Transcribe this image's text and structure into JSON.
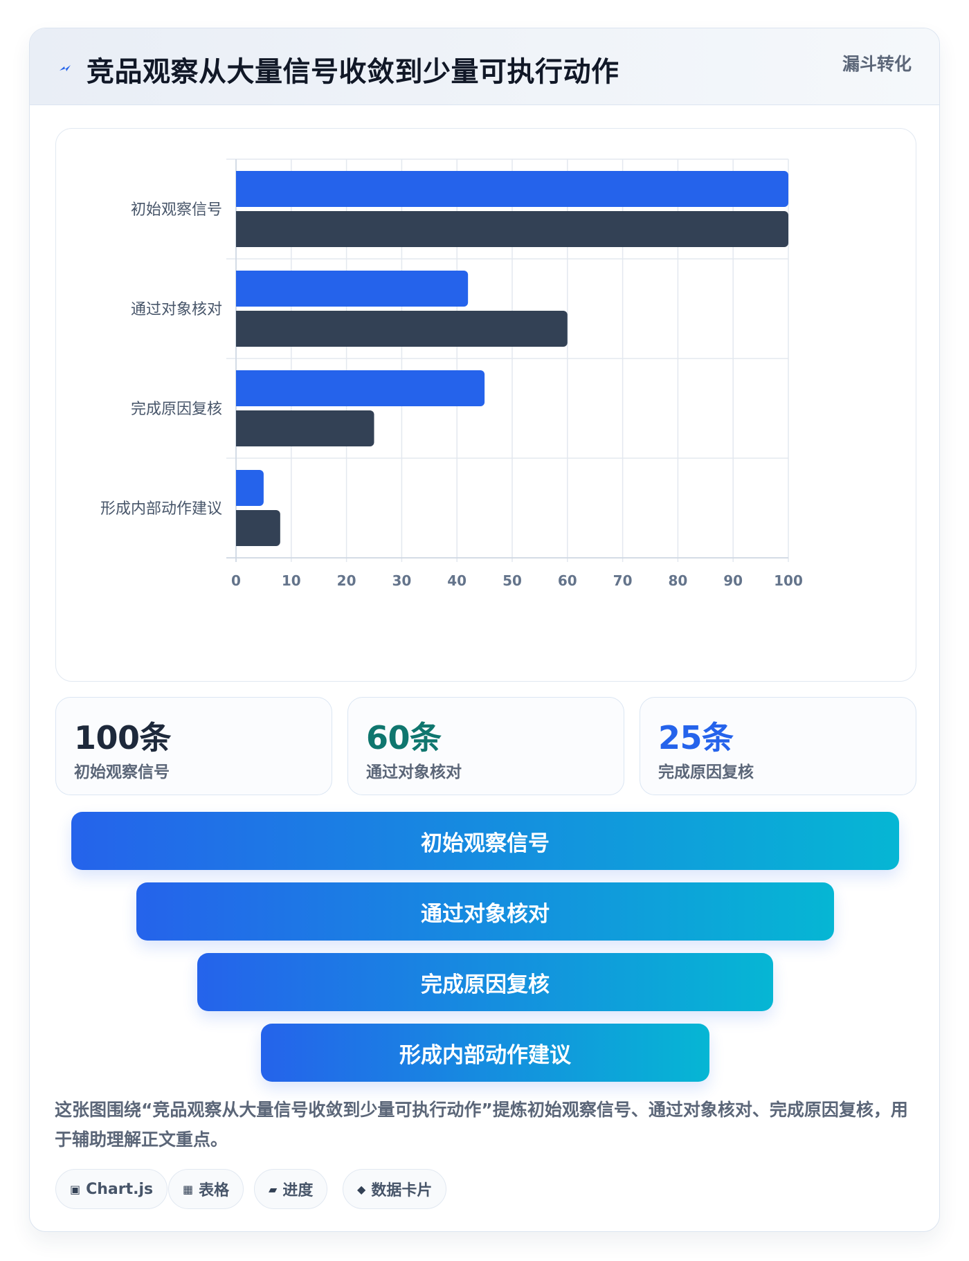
{
  "header": {
    "title": "竞品观察从大量信号收敛到少量可执行动作",
    "tag": "漏斗转化",
    "icon": "lightning-icon"
  },
  "chart_data": {
    "type": "bar",
    "orientation": "horizontal",
    "categories": [
      "初始观察信号",
      "通过对象核对",
      "完成原因复核",
      "形成内部动作建议"
    ],
    "series": [
      {
        "values": [
          100,
          42,
          45,
          5
        ],
        "color": "#2563eb"
      },
      {
        "values": [
          100,
          60,
          25,
          8
        ],
        "color": "#334155"
      }
    ],
    "xlim": [
      0,
      100
    ],
    "xticks": [
      0,
      10,
      20,
      30,
      40,
      50,
      60,
      70,
      80,
      90,
      100
    ],
    "grid": true
  },
  "stats": [
    {
      "value": "100条",
      "label": "初始观察信号",
      "color": "#1e293b"
    },
    {
      "value": "60条",
      "label": "通过对象核对",
      "color": "#0f766e"
    },
    {
      "value": "25条",
      "label": "完成原因复核",
      "color": "#2563eb"
    }
  ],
  "funnel": [
    "初始观察信号",
    "通过对象核对",
    "完成原因复核",
    "形成内部动作建议"
  ],
  "caption": "这张图围绕“竞品观察从大量信号收敛到少量可执行动作”提炼初始观察信号、通过对象核对、完成原因复核，用于辅助理解正文重点。",
  "chips": [
    {
      "icon": "▣",
      "icon_name": "chart-icon",
      "label": "Chart.js"
    },
    {
      "icon": "▦",
      "icon_name": "table-icon",
      "label": "表格"
    },
    {
      "icon": "▰",
      "icon_name": "progress-icon",
      "label": "进度"
    },
    {
      "icon": "◆",
      "icon_name": "diamond-icon",
      "label": "数据卡片"
    }
  ]
}
